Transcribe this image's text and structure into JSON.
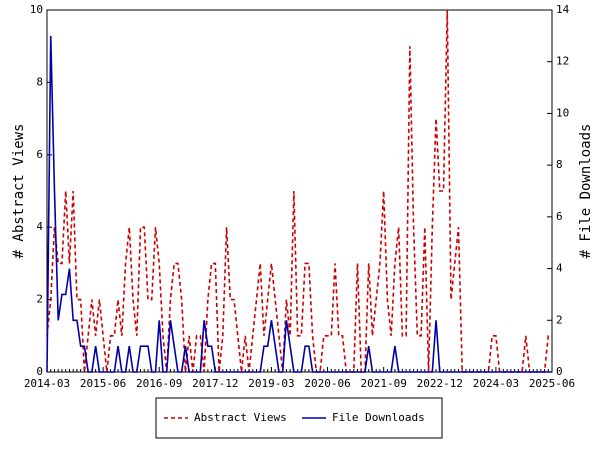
{
  "chart_data": {
    "type": "line",
    "categories": [
      "2014-03",
      null,
      null,
      null,
      null,
      null,
      null,
      null,
      null,
      null,
      null,
      null,
      null,
      null,
      null,
      "2015-06",
      null,
      null,
      null,
      null,
      null,
      null,
      null,
      null,
      null,
      null,
      null,
      null,
      null,
      null,
      "2016-09",
      null,
      null,
      null,
      null,
      null,
      null,
      null,
      null,
      null,
      null,
      null,
      null,
      null,
      null,
      "2017-12",
      null,
      null,
      null,
      null,
      null,
      null,
      null,
      null,
      null,
      null,
      null,
      null,
      null,
      null,
      "2019-03",
      null,
      null,
      null,
      null,
      null,
      null,
      null,
      null,
      null,
      null,
      null,
      null,
      null,
      null,
      "2020-06",
      null,
      null,
      null,
      null,
      null,
      null,
      null,
      null,
      null,
      null,
      null,
      null,
      null,
      null,
      "2021-09",
      null,
      null,
      null,
      null,
      null,
      null,
      null,
      null,
      null,
      null,
      null,
      null,
      null,
      null,
      "2022-12",
      null,
      null,
      null,
      null,
      null,
      null,
      null,
      null,
      null,
      null,
      null,
      null,
      null,
      null,
      "2024-03",
      null,
      null,
      null,
      null,
      null,
      null,
      null,
      null,
      null,
      null,
      null,
      null,
      null,
      null,
      "2025-06"
    ],
    "series": [
      {
        "name": "Abstract Views",
        "color": "#cc0000",
        "dash": true,
        "axis": "y",
        "values": [
          1,
          2,
          4,
          3,
          3,
          5,
          3,
          5,
          2,
          2,
          0,
          1,
          2,
          1,
          2,
          1,
          0,
          1,
          1,
          2,
          1,
          3,
          4,
          2,
          1,
          4,
          4,
          2,
          2,
          4,
          3,
          1,
          0,
          2,
          3,
          3,
          2,
          0,
          1,
          0,
          1,
          1,
          0,
          2,
          3,
          3,
          0,
          1,
          4,
          2,
          2,
          1,
          0,
          1,
          0,
          1,
          2,
          3,
          1,
          2,
          3,
          2,
          1,
          0,
          2,
          1,
          5,
          1,
          1,
          3,
          3,
          1,
          0,
          0,
          1,
          1,
          1,
          3,
          1,
          1,
          0,
          0,
          0,
          3,
          0,
          0,
          3,
          1,
          2,
          3,
          5,
          2,
          1,
          3,
          4,
          1,
          1,
          9,
          4,
          1,
          1,
          4,
          0,
          4,
          7,
          5,
          5,
          10,
          2,
          3,
          4,
          0,
          0,
          0,
          0,
          0,
          0,
          0,
          0,
          1,
          1,
          0,
          0,
          0,
          0,
          0,
          0,
          0,
          1,
          0,
          0,
          0,
          0,
          0,
          1,
          1
        ]
      },
      {
        "name": "File Downloads",
        "color": "#0000aa",
        "dash": false,
        "axis": "y2",
        "values": [
          0,
          13,
          7,
          2,
          3,
          3,
          4,
          2,
          2,
          1,
          1,
          0,
          0,
          1,
          0,
          0,
          0,
          0,
          0,
          1,
          0,
          0,
          1,
          0,
          0,
          1,
          1,
          1,
          0,
          0,
          2,
          0,
          0,
          2,
          1,
          0,
          0,
          1,
          0,
          0,
          0,
          0,
          2,
          1,
          1,
          0,
          0,
          0,
          0,
          0,
          0,
          0,
          0,
          0,
          0,
          0,
          0,
          0,
          1,
          1,
          2,
          1,
          0,
          0,
          2,
          1,
          0,
          0,
          0,
          1,
          1,
          0,
          0,
          0,
          0,
          0,
          0,
          0,
          0,
          0,
          0,
          0,
          0,
          0,
          0,
          0,
          1,
          0,
          0,
          0,
          0,
          0,
          0,
          1,
          0,
          0,
          0,
          0,
          0,
          0,
          0,
          0,
          0,
          0,
          2,
          0,
          0,
          0,
          0,
          0,
          0,
          0,
          0,
          0,
          0,
          0,
          0,
          0,
          0,
          0,
          0,
          0,
          0,
          0,
          0,
          0,
          0,
          0,
          0,
          0,
          0,
          0,
          0,
          0,
          0,
          0
        ]
      }
    ],
    "y_label": "# Abstract Views",
    "y2_label": "# File Downloads",
    "ylim": [
      0,
      10
    ],
    "yticks": [
      0,
      2,
      4,
      6,
      8,
      10
    ],
    "y2lim": [
      0,
      14
    ],
    "y2ticks": [
      0,
      2,
      4,
      6,
      8,
      10,
      12,
      14
    ],
    "legend": "bottom"
  }
}
